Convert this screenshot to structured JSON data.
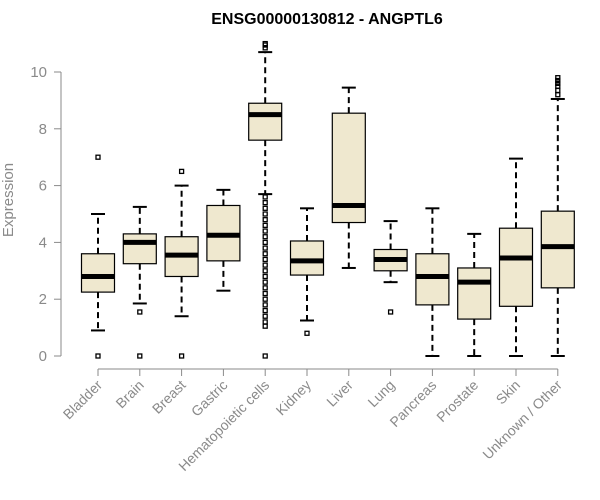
{
  "chart_data": {
    "type": "boxplot",
    "title": "ENSG00000130812 - ANGPTL6",
    "ylabel": "Expression",
    "xlabel": "",
    "ylim": [
      0,
      11
    ],
    "yticks": [
      0,
      2,
      4,
      6,
      8,
      10
    ],
    "box_fill": "#efe8cf",
    "line_color": "#000000",
    "axis_color": "#8a8a8a",
    "categories": [
      "Bladder",
      "Brain",
      "Breast",
      "Gastric",
      "Hematopoietic cells",
      "Kidney",
      "Liver",
      "Lung",
      "Pancreas",
      "Prostate",
      "Skin",
      "Unknown / Other"
    ],
    "boxes": [
      {
        "name": "Bladder",
        "min": 0.9,
        "q1": 2.25,
        "median": 2.8,
        "q3": 3.6,
        "max": 5.0,
        "outliers": [
          7.0,
          0.0
        ]
      },
      {
        "name": "Brain",
        "min": 1.85,
        "q1": 3.25,
        "median": 4.0,
        "q3": 4.3,
        "max": 5.25,
        "outliers": [
          1.55,
          0.0
        ]
      },
      {
        "name": "Breast",
        "min": 1.4,
        "q1": 2.8,
        "median": 3.55,
        "q3": 4.2,
        "max": 6.0,
        "outliers": [
          6.5,
          0.0
        ]
      },
      {
        "name": "Gastric",
        "min": 2.3,
        "q1": 3.35,
        "median": 4.25,
        "q3": 5.3,
        "max": 5.85,
        "outliers": []
      },
      {
        "name": "Hematopoietic cells",
        "min": 5.7,
        "q1": 7.6,
        "median": 8.5,
        "q3": 8.9,
        "max": 10.7,
        "outliers": [
          10.85,
          10.95,
          11.0,
          5.6,
          5.4,
          5.2,
          5.0,
          4.8,
          4.6,
          4.4,
          4.2,
          4.0,
          3.8,
          3.6,
          3.4,
          3.2,
          3.0,
          2.8,
          2.6,
          2.4,
          2.2,
          2.0,
          1.8,
          1.6,
          1.4,
          1.2,
          1.05,
          0.0
        ]
      },
      {
        "name": "Kidney",
        "min": 1.25,
        "q1": 2.85,
        "median": 3.35,
        "q3": 4.05,
        "max": 5.2,
        "outliers": [
          0.8
        ]
      },
      {
        "name": "Liver",
        "min": 3.1,
        "q1": 4.7,
        "median": 5.3,
        "q3": 8.55,
        "max": 9.45,
        "outliers": []
      },
      {
        "name": "Lung",
        "min": 2.6,
        "q1": 3.0,
        "median": 3.4,
        "q3": 3.75,
        "max": 4.75,
        "outliers": [
          1.55
        ]
      },
      {
        "name": "Pancreas",
        "min": 0.0,
        "q1": 1.8,
        "median": 2.8,
        "q3": 3.6,
        "max": 5.2,
        "outliers": []
      },
      {
        "name": "Prostate",
        "min": 0.0,
        "q1": 1.3,
        "median": 2.6,
        "q3": 3.1,
        "max": 4.3,
        "outliers": []
      },
      {
        "name": "Skin",
        "min": 0.0,
        "q1": 1.75,
        "median": 3.45,
        "q3": 4.5,
        "max": 6.95,
        "outliers": []
      },
      {
        "name": "Unknown / Other",
        "min": 0.0,
        "q1": 2.4,
        "median": 3.85,
        "q3": 5.1,
        "max": 9.05,
        "outliers": [
          9.2,
          9.35,
          9.5,
          9.6,
          9.7,
          9.8
        ]
      }
    ]
  }
}
